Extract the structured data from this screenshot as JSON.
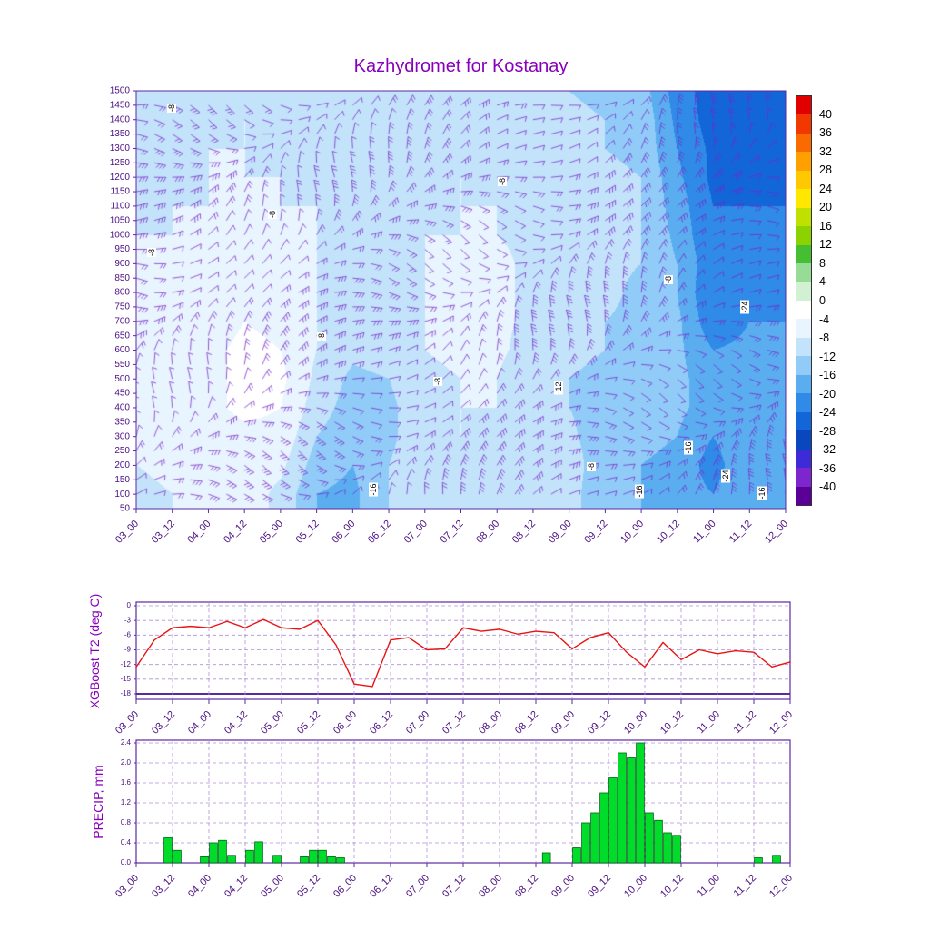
{
  "title": "Kazhydromet for Kostanay",
  "colors": {
    "title": "#8800bb",
    "ylabel": "#8800bb",
    "axis_text": "#4b0f82",
    "frame": "#5a2aa0",
    "grid": "#b090d8",
    "line_t2": "#e81414",
    "bar_fill": "#00dc2a",
    "bar_edge": "#006414",
    "barb": "#7828c8",
    "contour_label_text": "#000000"
  },
  "x_axis": {
    "tick_labels": [
      "03_00",
      "03_12",
      "04_00",
      "04_12",
      "05_00",
      "05_12",
      "06_00",
      "06_12",
      "07_00",
      "07_12",
      "08_00",
      "08_12",
      "09_00",
      "09_12",
      "10_00",
      "10_12",
      "11_00",
      "11_12",
      "12_00"
    ],
    "span_hours": 216
  },
  "chart_data": [
    {
      "type": "heatmap",
      "name": "temperature-wind-cross-section",
      "x_tick_labels": [
        "03_00",
        "03_12",
        "04_00",
        "04_12",
        "05_00",
        "05_12",
        "06_00",
        "06_12",
        "07_00",
        "07_12",
        "08_00",
        "08_12",
        "09_00",
        "09_12",
        "10_00",
        "10_12",
        "11_00",
        "11_12",
        "12_00"
      ],
      "y_tick_labels": [
        "1500",
        "1450",
        "1400",
        "1350",
        "1300",
        "1250",
        "1200",
        "1150",
        "1100",
        "1050",
        "1000",
        "950",
        "900",
        "850",
        "800",
        "750",
        "700",
        "650",
        "600",
        "550",
        "500",
        "450",
        "400",
        "350",
        "300",
        "250",
        "200",
        "150",
        "100",
        "50"
      ],
      "levels_m": [
        1500,
        1400,
        1300,
        1200,
        1100,
        1000,
        900,
        800,
        700,
        600,
        500,
        400,
        300,
        200,
        100
      ],
      "times_hours": [
        0,
        12,
        24,
        36,
        48,
        60,
        72,
        84,
        96,
        108,
        120,
        132,
        144,
        156,
        168,
        180,
        192,
        204,
        216
      ],
      "values": [
        [
          -10,
          -10,
          -9,
          -9,
          -10,
          -10,
          -11,
          -11,
          -10,
          -9,
          -10,
          -11,
          -12,
          -13,
          -14,
          -22,
          -26,
          -27,
          -28
        ],
        [
          -10,
          -9,
          -9,
          -8,
          -9,
          -10,
          -10,
          -10,
          -10,
          -9,
          -9,
          -10,
          -11,
          -12,
          -13,
          -21,
          -26,
          -27,
          -27
        ],
        [
          -9,
          -9,
          -8,
          -8,
          -9,
          -9,
          -10,
          -10,
          -9,
          -9,
          -9,
          -10,
          -11,
          -12,
          -13,
          -20,
          -25,
          -26,
          -26
        ],
        [
          -9,
          -9,
          -8,
          -8,
          -8,
          -9,
          -9,
          -10,
          -9,
          -8,
          -9,
          -10,
          -10,
          -11,
          -12,
          -19,
          -25,
          -25,
          -25
        ],
        [
          -9,
          -8,
          -8,
          -7,
          -8,
          -8,
          -9,
          -9,
          -9,
          -8,
          -8,
          -9,
          -10,
          -11,
          -12,
          -18,
          -24,
          -24,
          -24
        ],
        [
          -8,
          -8,
          -8,
          -7,
          -7,
          -8,
          -9,
          -9,
          -8,
          -8,
          -8,
          -9,
          -10,
          -11,
          -12,
          -17,
          -24,
          -23,
          -23
        ],
        [
          -8,
          -8,
          -7,
          -6,
          -7,
          -8,
          -9,
          -9,
          -8,
          -7,
          -7,
          -9,
          -10,
          -11,
          -12,
          -16,
          -23,
          -22,
          -22
        ],
        [
          -8,
          -7,
          -7,
          -5,
          -6,
          -8,
          -9,
          -9,
          -8,
          -7,
          -7,
          -9,
          -10,
          -11,
          -13,
          -16,
          -24,
          -21,
          -21
        ],
        [
          -7,
          -7,
          -6,
          -4,
          -5,
          -8,
          -10,
          -9,
          -8,
          -7,
          -7,
          -9,
          -10,
          -12,
          -13,
          -15,
          -23,
          -20,
          -20
        ],
        [
          -7,
          -6,
          -5,
          -3,
          -4,
          -8,
          -11,
          -10,
          -8,
          -7,
          -7,
          -10,
          -11,
          -12,
          -14,
          -15,
          -20,
          -19,
          -19
        ],
        [
          -6,
          -6,
          -5,
          -3,
          -3,
          -9,
          -13,
          -12,
          -9,
          -8,
          -8,
          -12,
          -12,
          -13,
          -14,
          -15,
          -18,
          -18,
          -18
        ],
        [
          -7,
          -6,
          -5,
          -3,
          -4,
          -10,
          -14,
          -13,
          -9,
          -8,
          -8,
          -12,
          -12,
          -14,
          -15,
          -15,
          -18,
          -17,
          -18
        ],
        [
          -8,
          -7,
          -6,
          -5,
          -5,
          -12,
          -15,
          -13,
          -9,
          -8,
          -9,
          -12,
          -11,
          -15,
          -15,
          -16,
          -20,
          -16,
          -18
        ],
        [
          -8,
          -7,
          -6,
          -6,
          -7,
          -14,
          -16,
          -12,
          -9,
          -9,
          -10,
          -12,
          -9,
          -16,
          -16,
          -17,
          -22,
          -16,
          -18
        ],
        [
          -9,
          -8,
          -7,
          -6,
          -9,
          -16,
          -17,
          -12,
          -10,
          -10,
          -11,
          -12,
          -10,
          -16,
          -16,
          -18,
          -20,
          -16,
          -18
        ]
      ],
      "contour_labels": [
        {
          "x": 0.055,
          "level": 1440,
          "text": "-8"
        },
        {
          "x": 0.024,
          "level": 940,
          "text": "-8"
        },
        {
          "x": 0.21,
          "level": 1070,
          "text": "-8"
        },
        {
          "x": 0.285,
          "level": 645,
          "text": "-8"
        },
        {
          "x": 0.465,
          "level": 490,
          "text": "-8"
        },
        {
          "x": 0.563,
          "level": 1185,
          "text": "-8"
        },
        {
          "x": 0.365,
          "level": 115,
          "text": "-16"
        },
        {
          "x": 0.65,
          "level": 470,
          "text": "-12"
        },
        {
          "x": 0.7,
          "level": 195,
          "text": "-8"
        },
        {
          "x": 0.82,
          "level": 845,
          "text": "-8"
        },
        {
          "x": 0.775,
          "level": 110,
          "text": "-16"
        },
        {
          "x": 0.85,
          "level": 260,
          "text": "-16"
        },
        {
          "x": 0.907,
          "level": 165,
          "text": "-24"
        },
        {
          "x": 0.937,
          "level": 750,
          "text": "-24"
        },
        {
          "x": 0.963,
          "level": 105,
          "text": "-16"
        }
      ],
      "wind_barbs": {
        "color": "#7828c8",
        "symbol": "wind-barb"
      },
      "colorbar": {
        "tick_labels": [
          "40",
          "36",
          "32",
          "28",
          "24",
          "20",
          "16",
          "12",
          "8",
          "4",
          "0",
          "-4",
          "-8",
          "-12",
          "-16",
          "-20",
          "-24",
          "-28",
          "-32",
          "-36",
          "-40"
        ],
        "boundaries": [
          -40,
          -36,
          -32,
          -28,
          -24,
          -20,
          -16,
          -12,
          -8,
          -4,
          0,
          4,
          8,
          12,
          16,
          20,
          24,
          28,
          32,
          36,
          40
        ],
        "colors_low_to_high": [
          "#5a0096",
          "#7d26cd",
          "#3d2bd8",
          "#0a46be",
          "#1266d8",
          "#2f8ae8",
          "#5aaef0",
          "#91ccf8",
          "#c3e3fb",
          "#e8f4fe",
          "#ffffff",
          "#d2f0d2",
          "#96dc96",
          "#46be32",
          "#8cd200",
          "#c0e000",
          "#ffe800",
          "#ffc800",
          "#ffa000",
          "#f96a00",
          "#f03800",
          "#e00000"
        ]
      }
    },
    {
      "type": "line",
      "name": "xgboost-t2",
      "ylabel": "XGBoost T2 (deg C)",
      "y_tick_labels": [
        "0",
        "-3",
        "-6",
        "-9",
        "-12",
        "-15",
        "-18"
      ],
      "ylim": [
        -18,
        0
      ],
      "x_start": "03_00",
      "x_step_hours": 6,
      "values_6h": [
        -12.5,
        -7,
        -4.5,
        -4.2,
        -4.5,
        -3.2,
        -4.5,
        -2.8,
        -4.5,
        -4.8,
        -3.0,
        -8,
        -16,
        -16.5,
        -7,
        -6.5,
        -9,
        -8.8,
        -4.5,
        -5.2,
        -4.8,
        -5.8,
        -5.2,
        -5.5,
        -8.8,
        -6.5,
        -5.5,
        -9.5,
        -12.5,
        -7.5,
        -11,
        -9,
        -9.8,
        -9.2,
        -9.5,
        -12.5,
        -11.5
      ]
    },
    {
      "type": "bar",
      "name": "precip",
      "ylabel": "PRECIP, mm",
      "y_tick_labels": [
        "0.0",
        "0.4",
        "0.8",
        "1.2",
        "1.6",
        "2.0",
        "2.4"
      ],
      "ylim": [
        0,
        2.4
      ],
      "bar_width_hours": 3,
      "bars": [
        {
          "t": 9,
          "v": 0.5
        },
        {
          "t": 12,
          "v": 0.25
        },
        {
          "t": 21,
          "v": 0.12
        },
        {
          "t": 24,
          "v": 0.4
        },
        {
          "t": 27,
          "v": 0.45
        },
        {
          "t": 30,
          "v": 0.15
        },
        {
          "t": 36,
          "v": 0.25
        },
        {
          "t": 39,
          "v": 0.42
        },
        {
          "t": 45,
          "v": 0.15
        },
        {
          "t": 54,
          "v": 0.12
        },
        {
          "t": 57,
          "v": 0.25
        },
        {
          "t": 60,
          "v": 0.25
        },
        {
          "t": 63,
          "v": 0.12
        },
        {
          "t": 66,
          "v": 0.1
        },
        {
          "t": 134,
          "v": 0.2
        },
        {
          "t": 144,
          "v": 0.3
        },
        {
          "t": 147,
          "v": 0.8
        },
        {
          "t": 150,
          "v": 1.0
        },
        {
          "t": 153,
          "v": 1.4
        },
        {
          "t": 156,
          "v": 1.7
        },
        {
          "t": 159,
          "v": 2.2
        },
        {
          "t": 162,
          "v": 2.1
        },
        {
          "t": 165,
          "v": 2.4
        },
        {
          "t": 168,
          "v": 1.0
        },
        {
          "t": 171,
          "v": 0.85
        },
        {
          "t": 174,
          "v": 0.6
        },
        {
          "t": 177,
          "v": 0.55
        },
        {
          "t": 204,
          "v": 0.1
        },
        {
          "t": 210,
          "v": 0.15
        }
      ]
    }
  ]
}
